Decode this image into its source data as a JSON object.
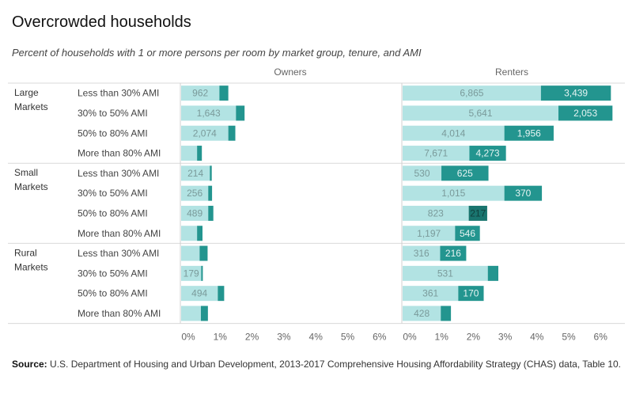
{
  "title": "Overcrowded households",
  "subtitle": "Percent of households with 1 or more persons per room by market group, tenure, and AMI",
  "source_label": "Source:",
  "source_text": " U.S. Department of Housing and Urban Development, 2013-2017 Comprehensive Housing Affordability Strategy (CHAS) data, Table 10.",
  "colors": {
    "light": "#b2e3e3",
    "dark": "#23958f",
    "darkest": "#19756f",
    "label_light": "#7a9a9a",
    "label_dark": "#e6f4f3"
  },
  "chart_data": {
    "type": "bar",
    "stacked": true,
    "orientation": "horizontal",
    "panels": [
      "Owners",
      "Renters"
    ],
    "groups": [
      "Large Markets",
      "Small Markets",
      "Rural Markets"
    ],
    "categories": [
      "Less than 30% AMI",
      "30% to 50% AMI",
      "50% to 80% AMI",
      "More than 80% AMI"
    ],
    "x_ticks": [
      "0%",
      "1%",
      "2%",
      "3%",
      "4%",
      "5%",
      "6%"
    ],
    "xlim": [
      0,
      6.5
    ],
    "rows": [
      {
        "group": "Large Markets",
        "category": "Less than 30% AMI",
        "owners": {
          "light": 1.2,
          "dark": 0.28,
          "light_label": "962",
          "dark_label": ""
        },
        "renters": {
          "light": 4.35,
          "dark": 2.2,
          "light_label": "6,865",
          "dark_label": "3,439"
        }
      },
      {
        "group": "Large Markets",
        "category": "30% to 50% AMI",
        "owners": {
          "light": 1.72,
          "dark": 0.27,
          "light_label": "1,643",
          "dark_label": ""
        },
        "renters": {
          "light": 4.9,
          "dark": 1.7,
          "light_label": "5,641",
          "dark_label": "2,053"
        }
      },
      {
        "group": "Large Markets",
        "category": "50% to 80% AMI",
        "owners": {
          "light": 1.48,
          "dark": 0.22,
          "light_label": "2,074",
          "dark_label": ""
        },
        "renters": {
          "light": 3.2,
          "dark": 1.55,
          "light_label": "4,014",
          "dark_label": "1,956"
        }
      },
      {
        "group": "Large Markets",
        "category": "More than 80% AMI",
        "owners": {
          "light": 0.5,
          "dark": 0.15,
          "light_label": "",
          "dark_label": ""
        },
        "renters": {
          "light": 2.1,
          "dark": 1.15,
          "light_label": "7,671",
          "dark_label": "4,273"
        }
      },
      {
        "group": "Small Markets",
        "category": "Less than 30% AMI",
        "owners": {
          "light": 0.9,
          "dark": 0.06,
          "light_label": "214",
          "dark_label": ""
        },
        "renters": {
          "light": 1.22,
          "dark": 1.48,
          "light_label": "530",
          "dark_label": "625"
        }
      },
      {
        "group": "Small Markets",
        "category": "30% to 50% AMI",
        "owners": {
          "light": 0.85,
          "dark": 0.12,
          "light_label": "256",
          "dark_label": ""
        },
        "renters": {
          "light": 3.2,
          "dark": 1.18,
          "light_label": "1,015",
          "dark_label": "370"
        }
      },
      {
        "group": "Small Markets",
        "category": "50% to 80% AMI",
        "owners": {
          "light": 0.85,
          "dark": 0.16,
          "light_label": "489",
          "dark_label": ""
        },
        "renters": {
          "light": 2.08,
          "dark": 0.58,
          "light_label": "823",
          "dark_label": "217"
        }
      },
      {
        "group": "Small Markets",
        "category": "More than 80% AMI",
        "owners": {
          "light": 0.5,
          "dark": 0.17,
          "light_label": "",
          "dark_label": ""
        },
        "renters": {
          "light": 1.65,
          "dark": 0.78,
          "light_label": "1,197",
          "dark_label": "546"
        }
      },
      {
        "group": "Rural Markets",
        "category": "Less than 30% AMI",
        "owners": {
          "light": 0.58,
          "dark": 0.25,
          "light_label": "",
          "dark_label": ""
        },
        "renters": {
          "light": 1.18,
          "dark": 0.82,
          "light_label": "316",
          "dark_label": "216"
        }
      },
      {
        "group": "Rural Markets",
        "category": "30% to 50% AMI",
        "owners": {
          "light": 0.63,
          "dark": 0.05,
          "light_label": "179",
          "dark_label": ""
        },
        "renters": {
          "light": 2.68,
          "dark": 0.33,
          "light_label": "531",
          "dark_label": ""
        }
      },
      {
        "group": "Rural Markets",
        "category": "50% to 80% AMI",
        "owners": {
          "light": 1.15,
          "dark": 0.2,
          "light_label": "494",
          "dark_label": ""
        },
        "renters": {
          "light": 1.75,
          "dark": 0.8,
          "light_label": "361",
          "dark_label": "170"
        }
      },
      {
        "group": "Rural Markets",
        "category": "More than 80% AMI",
        "owners": {
          "light": 0.62,
          "dark": 0.22,
          "light_label": "",
          "dark_label": ""
        },
        "renters": {
          "light": 1.2,
          "dark": 0.32,
          "light_label": "428",
          "dark_label": ""
        }
      }
    ]
  }
}
